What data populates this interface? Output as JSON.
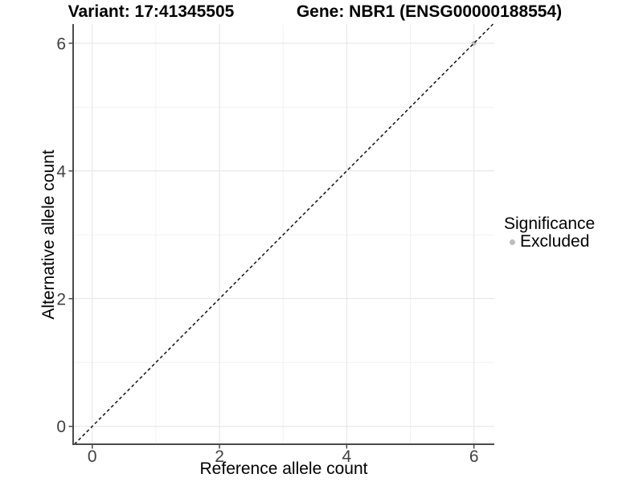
{
  "chart_data": {
    "type": "scatter",
    "title_variant": "Variant: 17:41345505",
    "title_gene": "Gene: NBR1 (ENSG00000188554)",
    "xlabel": "Reference allele count",
    "ylabel": "Alternative allele count",
    "xlim": [
      -0.3,
      6.32
    ],
    "ylim": [
      -0.28,
      6.3
    ],
    "x_major_ticks": [
      0,
      2,
      4,
      6
    ],
    "y_major_ticks": [
      0,
      2,
      4,
      6
    ],
    "x_minor_gridlines": [
      1,
      3,
      5
    ],
    "y_minor_gridlines": [
      1,
      3,
      5
    ],
    "grid": "major and minor gridlines on white background",
    "series": [
      {
        "name": "Excluded",
        "color": "#bdbdbd",
        "points": [
          {
            "x": 6,
            "y": 6
          }
        ]
      }
    ],
    "reference_line": {
      "kind": "identity",
      "slope": 1,
      "intercept": 0,
      "line_style": "dashed",
      "color": "#111111"
    },
    "legend": {
      "title": "Significance",
      "position": "right",
      "items": [
        {
          "label": "Excluded",
          "color": "#bdbdbd"
        }
      ]
    },
    "colors": {
      "grid_major": "#e4e4e4",
      "grid_minor": "#f1f1f1",
      "axis_line": "#4a4a4a",
      "tick_label": "#404040",
      "text": "#000000",
      "background": "#ffffff"
    }
  }
}
